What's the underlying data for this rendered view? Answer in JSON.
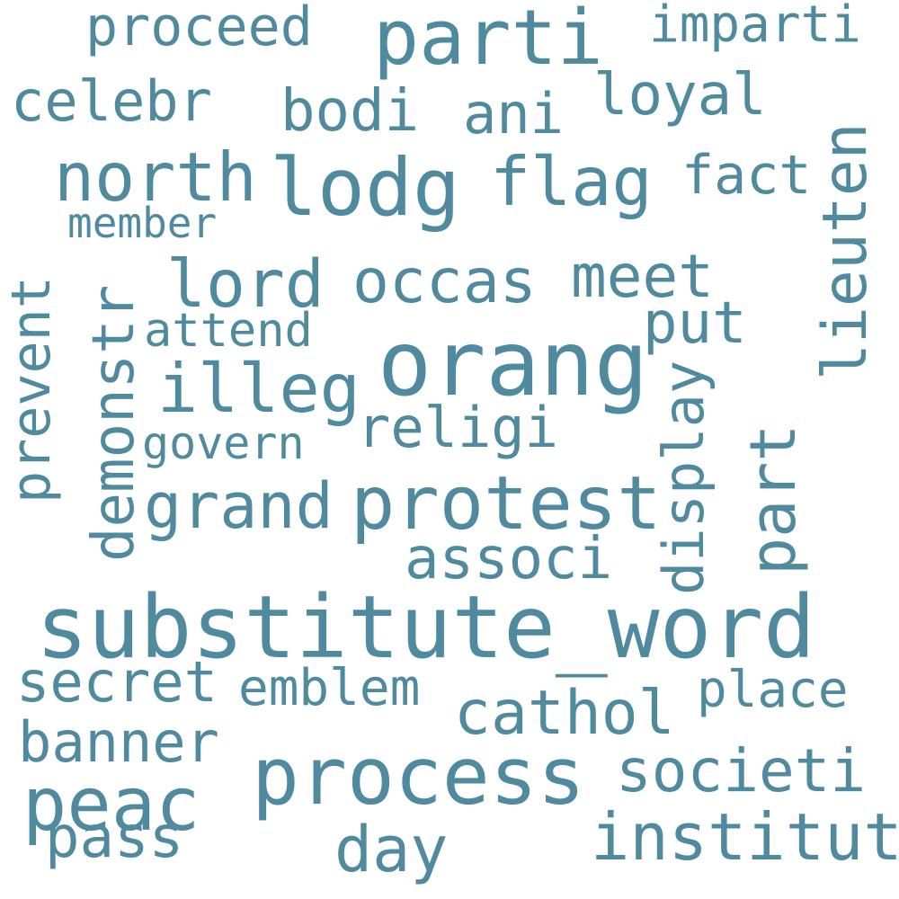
{
  "color": "#4f8a9f",
  "words": [
    "proceed",
    "parti",
    "imparti",
    "celebr",
    "bodi",
    "ani",
    "loyal",
    "north",
    "lodg",
    "flag",
    "fact",
    "lieuten",
    "member",
    "prevent",
    "demonstr",
    "lord",
    "occas",
    "meet",
    "put",
    "attend",
    "orang",
    "illeg",
    "display",
    "religi",
    "govern",
    "part",
    "grand",
    "protest",
    "associ",
    "substitute_word",
    "secret",
    "emblem",
    "place",
    "cathol",
    "banner",
    "process",
    "societi",
    "peac",
    "pass",
    "day",
    "institut"
  ]
}
